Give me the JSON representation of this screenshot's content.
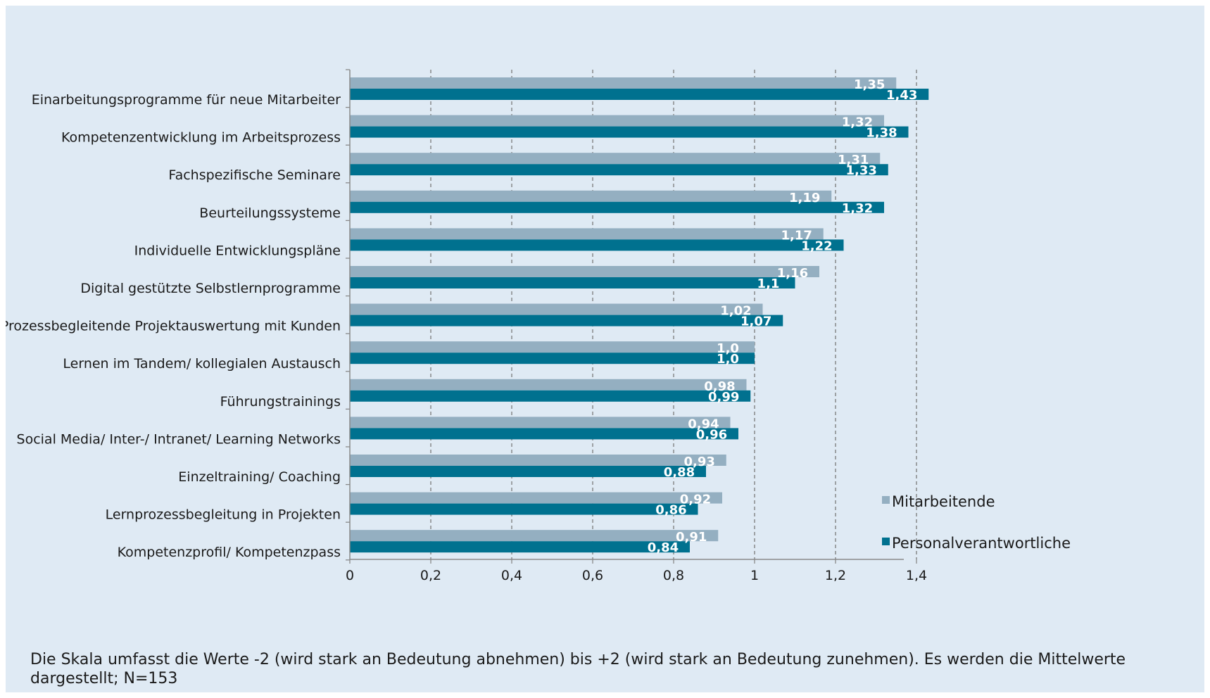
{
  "chart_data": {
    "type": "bar",
    "orientation": "horizontal",
    "categories": [
      "Einarbeitungsprogramme für neue Mitarbeiter",
      "Kompetenzentwicklung im Arbeitsprozess",
      "Fachspezifische Seminare",
      "Beurteilungssysteme",
      "Individuelle Entwicklungspläne",
      "Digital gestützte Selbstlernprogramme",
      "Prozessbegleitende Projektauswertung mit Kunden",
      "Lernen im Tandem/ kollegialen Austausch",
      "Führungstrainings",
      "Social Media/ Inter-/ Intranet/ Learning Networks",
      "Einzeltraining/ Coaching",
      "Lernprozessbegleitung in Projekten",
      "Kompetenzprofil/ Kompetenzpass"
    ],
    "series": [
      {
        "name": "Mitarbeitende",
        "color": "#94afc1",
        "values": [
          1.35,
          1.32,
          1.31,
          1.19,
          1.17,
          1.16,
          1.02,
          1.0,
          0.98,
          0.94,
          0.93,
          0.92,
          0.91
        ],
        "labels": [
          "1,35",
          "1,32",
          "1,31",
          "1,19",
          "1,17",
          "1,16",
          "1,02",
          "1,0",
          "0,98",
          "0,94",
          "0,93",
          "0,92",
          "0,91"
        ]
      },
      {
        "name": "Personalverantwortliche",
        "color": "#00718f",
        "values": [
          1.43,
          1.38,
          1.33,
          1.32,
          1.22,
          1.1,
          1.07,
          1.0,
          0.99,
          0.96,
          0.88,
          0.86,
          0.84
        ],
        "labels": [
          "1,43",
          "1,38",
          "1,33",
          "1,32",
          "1,22",
          "1,1",
          "1,07",
          "1,0",
          "0,99",
          "0,96",
          "0,88",
          "0,86",
          "0,84"
        ]
      }
    ],
    "x_ticks": [
      0,
      0.2,
      0.4,
      0.6,
      0.8,
      1,
      1.2,
      1.4
    ],
    "x_tick_labels": [
      "0",
      "0,2",
      "0,4",
      "0,6",
      "0,8",
      "1",
      "1,2",
      "1,4"
    ],
    "xlim": [
      0,
      1.5
    ],
    "grid": "vertical dashed",
    "legend_position": "bottom-right"
  },
  "footnote": "Die Skala umfasst die Werte  -2 (wird stark an Bedeutung abnehmen) bis +2 (wird stark an Bedeutung zunehmen). Es werden die Mittelwerte dargestellt; N=153"
}
